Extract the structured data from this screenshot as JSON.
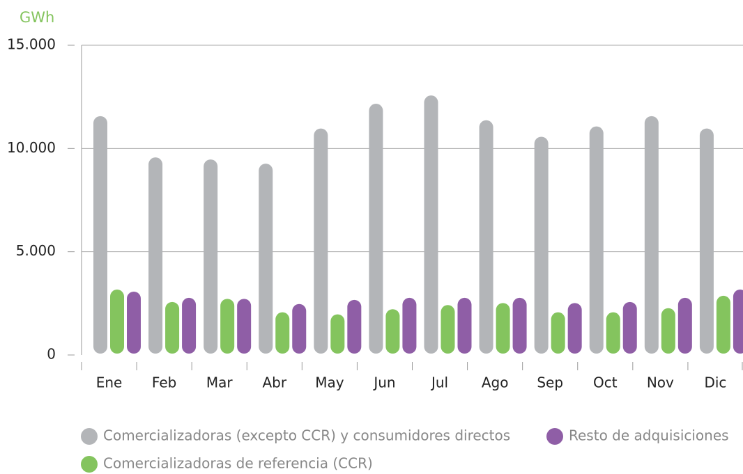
{
  "chart_data": {
    "type": "bar",
    "y_label": "GWh",
    "categories": [
      "Ene",
      "Feb",
      "Mar",
      "Abr",
      "May",
      "Jun",
      "Jul",
      "Ago",
      "Sep",
      "Oct",
      "Nov",
      "Dic"
    ],
    "series": [
      {
        "name": "Comercializadoras (excepto CCR) y consumidores directos",
        "color": "#b3b5b8",
        "values": [
          11500,
          9500,
          9400,
          9200,
          10900,
          12100,
          12500,
          11300,
          10500,
          11000,
          11500,
          10900
        ]
      },
      {
        "name": "Comercializadoras de referencia (CCR)",
        "color": "#84c45e",
        "values": [
          3100,
          2500,
          2650,
          2000,
          1900,
          2150,
          2350,
          2450,
          2000,
          2000,
          2200,
          2800
        ]
      },
      {
        "name": "Resto de adquisiciones",
        "color": "#8f5ea6",
        "values": [
          3000,
          2700,
          2650,
          2400,
          2600,
          2700,
          2700,
          2700,
          2450,
          2500,
          2700,
          3100
        ]
      }
    ],
    "ylim": [
      0,
      15000
    ],
    "yticks": [
      0,
      {
        "value": 5000,
        "label": "5.000"
      },
      {
        "value": 10000,
        "label": "10.000"
      },
      {
        "value": 15000,
        "label": "15.000"
      }
    ],
    "grid": true
  }
}
